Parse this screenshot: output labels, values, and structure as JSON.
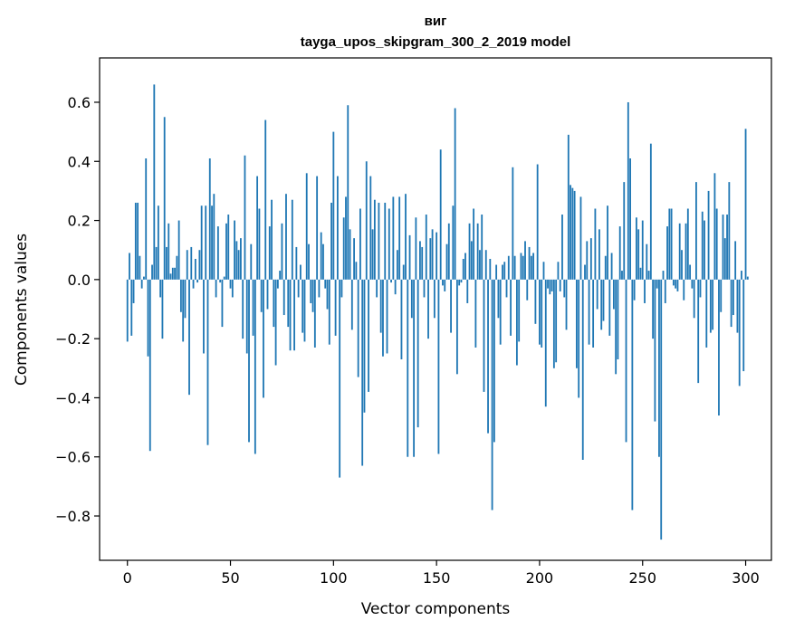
{
  "chart_data": {
    "type": "bar",
    "title": "виг",
    "subtitle": "tayga_upos_skipgram_300_2_2019 model",
    "xlabel": "Vector components",
    "ylabel": "Components values",
    "xlim": [
      -13.5,
      312.5
    ],
    "ylim": [
      -0.95,
      0.75
    ],
    "xticks": [
      0,
      50,
      100,
      150,
      200,
      250,
      300
    ],
    "yticks": [
      -0.8,
      -0.6,
      -0.4,
      -0.2,
      0.0,
      0.2,
      0.4,
      0.6
    ],
    "ytick_labels": [
      "−0.8",
      "−0.6",
      "−0.4",
      "−0.2",
      "0.0",
      "0.2",
      "0.4",
      "0.6"
    ],
    "bar_color": "#1f77b4",
    "values": [
      -0.21,
      0.09,
      -0.19,
      -0.08,
      0.26,
      0.26,
      0.08,
      -0.03,
      0.01,
      0.41,
      -0.26,
      -0.58,
      0.05,
      0.66,
      0.11,
      0.25,
      -0.06,
      -0.2,
      0.55,
      0.11,
      0.19,
      0.02,
      0.04,
      0.04,
      0.08,
      0.2,
      -0.11,
      -0.21,
      -0.13,
      0.1,
      -0.39,
      0.11,
      -0.03,
      0.07,
      -0.01,
      0.1,
      0.25,
      -0.25,
      0.25,
      -0.56,
      0.41,
      0.25,
      0.29,
      -0.06,
      0.18,
      -0.01,
      -0.16,
      0.01,
      0.19,
      0.22,
      -0.03,
      -0.06,
      0.2,
      0.13,
      0.1,
      0.14,
      -0.2,
      0.42,
      -0.25,
      -0.55,
      0.12,
      -0.19,
      -0.59,
      0.35,
      0.24,
      -0.11,
      -0.4,
      0.54,
      -0.1,
      0.18,
      0.27,
      -0.16,
      -0.29,
      -0.03,
      0.03,
      0.19,
      -0.12,
      0.29,
      -0.16,
      -0.24,
      0.27,
      -0.24,
      0.11,
      -0.06,
      0.05,
      -0.18,
      -0.21,
      0.36,
      0.12,
      -0.08,
      -0.11,
      -0.23,
      0.35,
      -0.06,
      0.16,
      0.12,
      -0.03,
      -0.1,
      -0.22,
      0.26,
      0.5,
      -0.19,
      0.35,
      -0.67,
      -0.06,
      0.21,
      0.28,
      0.59,
      0.17,
      -0.17,
      0.14,
      0.06,
      -0.33,
      0.24,
      -0.63,
      -0.45,
      0.4,
      -0.38,
      0.35,
      0.17,
      0.27,
      -0.06,
      0.26,
      -0.18,
      -0.26,
      0.26,
      -0.25,
      0.24,
      -0.01,
      0.28,
      -0.05,
      0.1,
      0.28,
      -0.27,
      0.05,
      0.29,
      -0.6,
      0.15,
      -0.13,
      -0.6,
      0.21,
      -0.5,
      0.13,
      0.11,
      -0.06,
      0.22,
      -0.2,
      0.14,
      0.17,
      -0.13,
      0.16,
      -0.59,
      0.44,
      -0.02,
      -0.04,
      0.12,
      0.19,
      -0.18,
      0.25,
      0.58,
      -0.32,
      -0.02,
      -0.01,
      0.07,
      0.09,
      -0.08,
      0.19,
      0.13,
      0.24,
      -0.23,
      0.19,
      0.1,
      0.22,
      -0.38,
      0.1,
      -0.52,
      0.07,
      -0.78,
      -0.55,
      0.05,
      -0.13,
      -0.22,
      0.05,
      0.06,
      -0.06,
      0.08,
      -0.19,
      0.38,
      0.08,
      -0.29,
      -0.21,
      0.09,
      0.08,
      0.13,
      -0.07,
      0.11,
      0.08,
      0.09,
      -0.15,
      0.39,
      -0.22,
      -0.23,
      0.06,
      -0.43,
      -0.03,
      -0.05,
      -0.04,
      -0.3,
      -0.28,
      0.06,
      -0.04,
      0.22,
      -0.06,
      -0.17,
      0.49,
      0.32,
      0.31,
      0.3,
      -0.3,
      -0.4,
      0.28,
      -0.61,
      0.05,
      0.13,
      -0.22,
      0.14,
      -0.23,
      0.24,
      -0.1,
      0.17,
      -0.17,
      -0.14,
      0.08,
      0.25,
      -0.19,
      0.09,
      -0.1,
      -0.32,
      -0.27,
      0.18,
      0.03,
      0.33,
      -0.55,
      0.6,
      0.41,
      -0.78,
      -0.07,
      0.21,
      0.17,
      0.04,
      0.2,
      -0.08,
      0.12,
      0.03,
      0.46,
      -0.2,
      -0.48,
      -0.03,
      -0.6,
      -0.88,
      0.03,
      -0.08,
      0.18,
      0.24,
      0.24,
      -0.02,
      -0.03,
      -0.04,
      0.19,
      0.1,
      -0.07,
      0.19,
      0.24,
      0.05,
      -0.03,
      -0.13,
      0.33,
      -0.35,
      -0.06,
      0.23,
      0.2,
      -0.23,
      0.3,
      -0.18,
      -0.17,
      0.36,
      0.24,
      -0.46,
      -0.11,
      0.22,
      0.14,
      0.22,
      0.33,
      -0.16,
      -0.12,
      0.13,
      -0.18,
      -0.36,
      0.03,
      -0.31,
      0.51,
      0.01
    ]
  }
}
